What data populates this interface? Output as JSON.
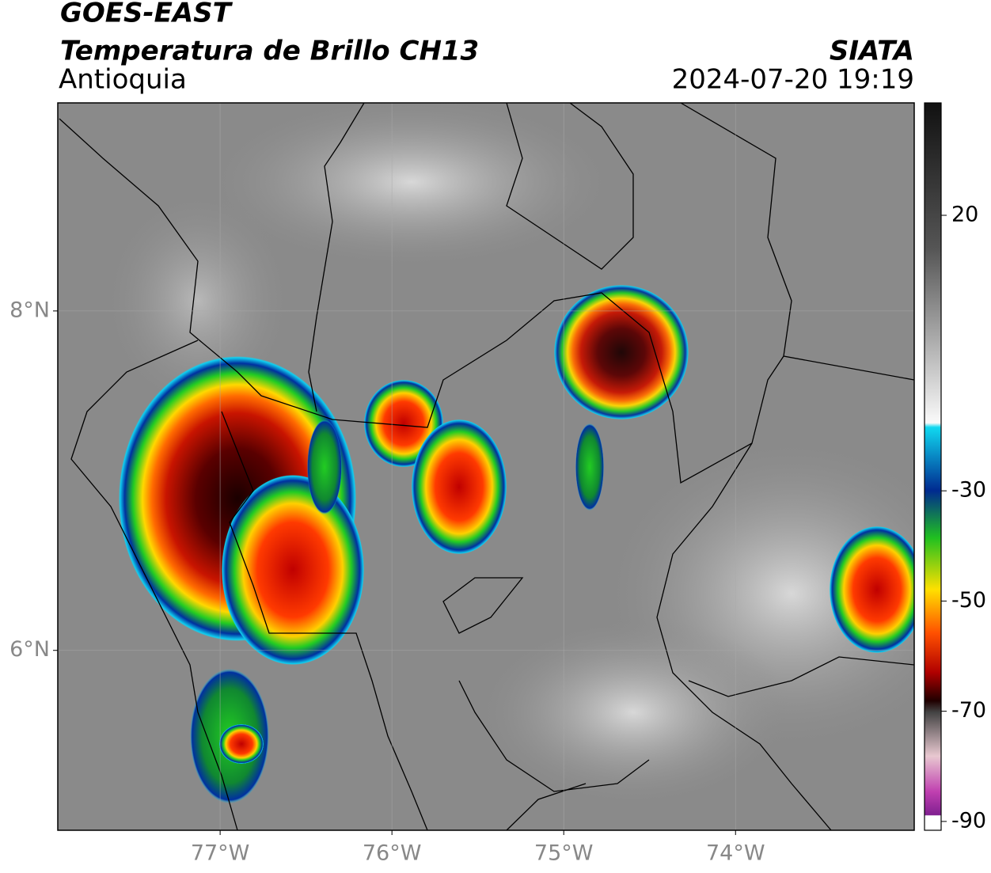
{
  "header": {
    "title": "GOES-EAST",
    "subtitle": "Temperatura de Brillo CH13",
    "region": "Antioquia",
    "source": "SIATA",
    "datetime": "2024-07-20 19:19"
  },
  "map": {
    "xlim": [
      -77.945,
      -72.96
    ],
    "ylim": [
      4.94,
      9.226
    ],
    "xticks": [
      {
        "value": -77,
        "label": "77°W"
      },
      {
        "value": -76,
        "label": "76°W"
      },
      {
        "value": -75,
        "label": "75°W"
      },
      {
        "value": -74,
        "label": "74°W"
      }
    ],
    "yticks": [
      {
        "value": 8,
        "label": "8°N"
      },
      {
        "value": 6,
        "label": "6°N"
      }
    ],
    "grid": true
  },
  "colorbar": {
    "lim": [
      -91.6,
      40.4
    ],
    "ticks": [
      20,
      -30,
      -50,
      -70,
      -90
    ]
  }
}
